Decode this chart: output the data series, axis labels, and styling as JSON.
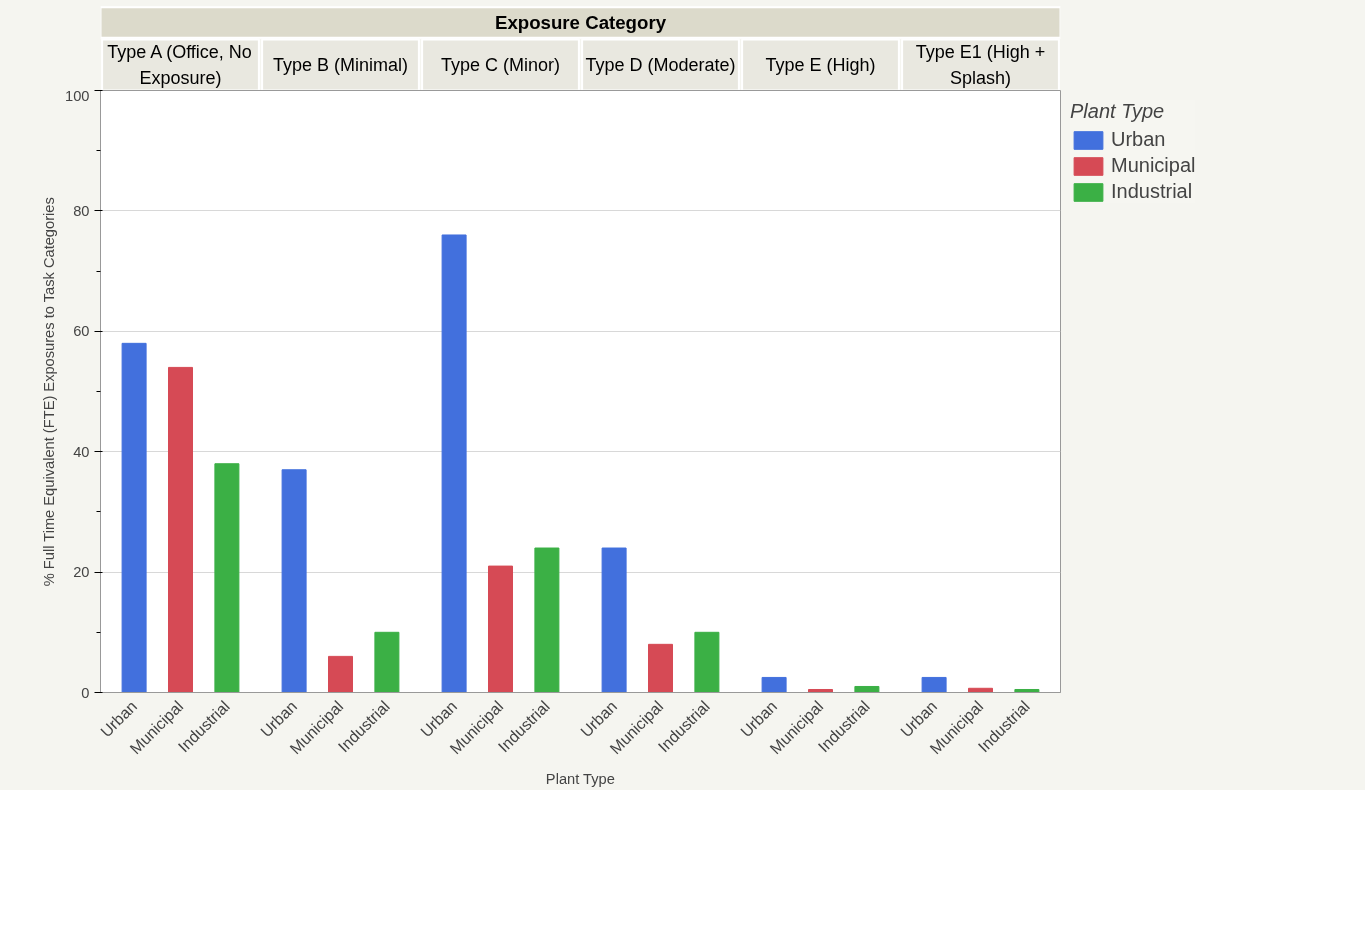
{
  "chart_data": {
    "type": "bar",
    "title": "Exposure Category",
    "xlabel": "Plant Type",
    "ylabel": "% Full Time Equivalent (FTE) Exposures to Task Categories",
    "legend_title": "Plant Type",
    "legend": "top right",
    "categories": [
      "Type A (Office, No Exposure)",
      "Type B (Minimal)",
      "Type C (Minor)",
      "Type D (Moderate)",
      "Type E (High)",
      "Type E1 (High + Splash)"
    ],
    "series": [
      {
        "name": "Urban",
        "color": "#4270dd",
        "values": [
          58,
          37,
          76,
          24,
          2.5,
          2.5
        ]
      },
      {
        "name": "Municipal",
        "color": "#d64a55",
        "values": [
          54,
          6,
          21,
          8,
          0.5,
          0.7
        ]
      },
      {
        "name": "Industrial",
        "color": "#3bb045",
        "values": [
          38,
          10,
          24,
          10,
          1,
          0.5
        ]
      }
    ],
    "ylim": [
      0,
      100
    ],
    "yticks": [
      0,
      20,
      40,
      60,
      80,
      100
    ],
    "grid": "y"
  }
}
